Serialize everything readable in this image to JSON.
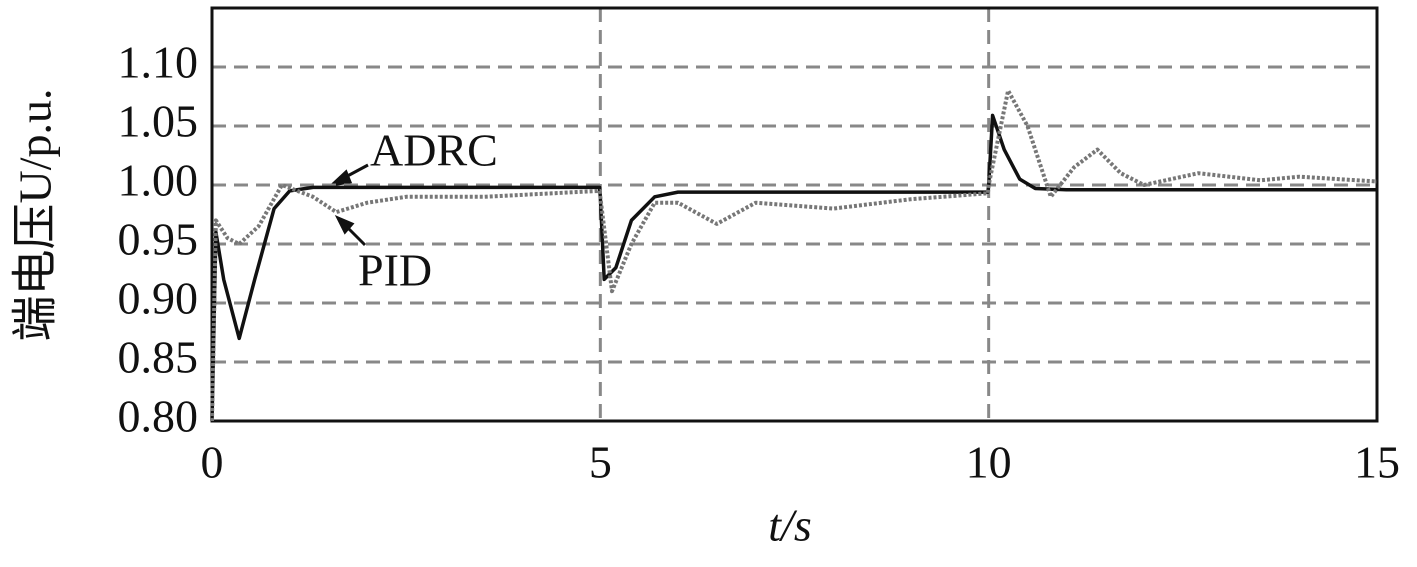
{
  "chart_data": {
    "type": "line",
    "xlabel": "t/s",
    "ylabel": "端电压U/p.u.",
    "annotations": [
      "ADRC",
      "PID"
    ],
    "xlim": [
      0,
      15
    ],
    "xticks": [
      0,
      5,
      10,
      15
    ],
    "ylim": [
      0.8,
      1.15
    ],
    "yticks": [
      {
        "value": 0.8,
        "label": "0.80"
      },
      0.85,
      {
        "value": 0.9,
        "label": "0.90"
      },
      0.95,
      {
        "value": 1.0,
        "label": "1.00"
      },
      1.05,
      {
        "value": 1.1,
        "label": "1.10"
      }
    ],
    "grid": true,
    "series": [
      {
        "name": "ADRC",
        "color": "#111111",
        "style": "solid",
        "x": [
          0,
          0.05,
          0.15,
          0.35,
          0.55,
          0.8,
          1.0,
          1.3,
          2,
          4.99,
          5.0,
          5.05,
          5.2,
          5.4,
          5.7,
          6,
          9.99,
          10.0,
          10.05,
          10.2,
          10.4,
          10.6,
          11,
          15
        ],
        "values": [
          0.8,
          0.96,
          0.92,
          0.87,
          0.92,
          0.98,
          0.995,
          0.998,
          0.998,
          0.998,
          0.99,
          0.92,
          0.93,
          0.97,
          0.99,
          0.994,
          0.994,
          1.0,
          1.059,
          1.03,
          1.005,
          0.997,
          0.996,
          0.996
        ]
      },
      {
        "name": "PID",
        "color": "#777777",
        "style": "dotted",
        "x": [
          0,
          0.05,
          0.2,
          0.35,
          0.6,
          0.9,
          1.3,
          1.6,
          2.0,
          2.5,
          3.5,
          4.99,
          5.0,
          5.15,
          5.4,
          5.7,
          6.0,
          6.5,
          7.0,
          8.0,
          9.0,
          9.99,
          10.0,
          10.25,
          10.5,
          10.8,
          11.1,
          11.4,
          11.7,
          12.0,
          12.7,
          13.5,
          14.0,
          15
        ],
        "values": [
          0.8,
          0.97,
          0.955,
          0.95,
          0.965,
          1.0,
          0.99,
          0.977,
          0.985,
          0.99,
          0.99,
          0.995,
          0.99,
          0.91,
          0.95,
          0.985,
          0.985,
          0.967,
          0.985,
          0.98,
          0.988,
          0.993,
          1.0,
          1.08,
          1.05,
          0.99,
          1.015,
          1.03,
          1.01,
          1.0,
          1.01,
          1.004,
          1.007,
          1.003
        ]
      }
    ]
  }
}
